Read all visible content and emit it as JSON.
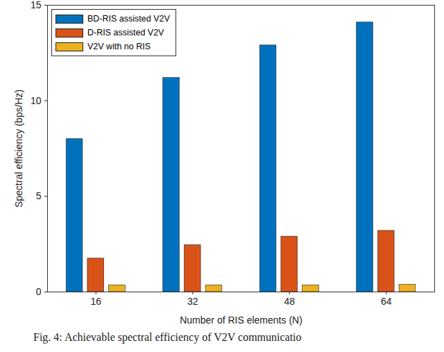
{
  "chart_data": {
    "type": "bar",
    "caption": "Fig. 4: Achievable spectral efficiency of V2V communicatio",
    "x_label": "Number of RIS elements (N)",
    "y_label": "Spectral efficiency (bps/Hz)",
    "categories": [
      "16",
      "32",
      "48",
      "64"
    ],
    "series": [
      {
        "name": "BD-RIS assisted V2V",
        "color": "#0072BD",
        "values": [
          8.0,
          11.2,
          12.9,
          14.1
        ]
      },
      {
        "name": "D-RIS assisted V2V",
        "color": "#D95319",
        "values": [
          1.75,
          2.45,
          2.9,
          3.2
        ]
      },
      {
        "name": "V2V with no RIS",
        "color": "#EDB120",
        "values": [
          0.35,
          0.35,
          0.35,
          0.38
        ]
      }
    ],
    "ylim": [
      0,
      15
    ],
    "yticks": [
      0,
      5,
      10,
      15
    ],
    "grid": false,
    "legend": "top-left"
  }
}
